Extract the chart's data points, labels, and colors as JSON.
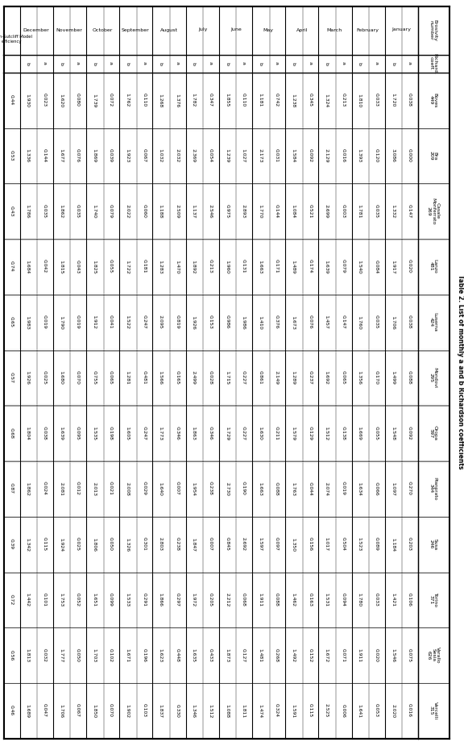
{
  "title": "Table 2. List of monthly a and b Richardson coefficients",
  "stations": [
    "Boves",
    "Bra",
    "Casale\nMonferrato",
    "Lanzo",
    "Luserna",
    "Mondovi",
    "Oropa",
    "Pianprato",
    "Susa",
    "Torino",
    "Varallo\nSesia",
    "Vercelli"
  ],
  "station_numbers": [
    "449",
    "209",
    "269",
    "481",
    "424",
    "295",
    "597",
    "344",
    "246",
    "371",
    "626",
    "315"
  ],
  "months": [
    "January",
    "February",
    "March",
    "April",
    "May",
    "June",
    "July",
    "August",
    "September",
    "October",
    "November",
    "December"
  ],
  "nash_label": "Nash-Sutcliff Model\nefficiency",
  "coeff_col_label": "Richard.\ncoeff.",
  "erosivity_label": "Erosivity\nnumber",
  "data": {
    "January": {
      "a": [
        0.038,
        0.0,
        0.147,
        0.02,
        0.038,
        0.088,
        0.092,
        0.27,
        0.203,
        0.106,
        0.075,
        0.016
      ],
      "b": [
        1.72,
        3.086,
        1.332,
        1.917,
        1.706,
        1.499,
        1.548,
        1.097,
        1.184,
        1.421,
        1.546,
        2.02
      ]
    },
    "February": {
      "a": [
        0.033,
        0.12,
        0.035,
        0.084,
        0.035,
        0.17,
        0.055,
        0.066,
        0.089,
        0.033,
        0.02,
        0.053
      ],
      "b": [
        1.81,
        1.393,
        1.781,
        1.54,
        1.76,
        1.356,
        1.669,
        1.634,
        1.523,
        1.78,
        1.911,
        1.641
      ]
    },
    "March": {
      "a": [
        0.213,
        0.016,
        0.003,
        0.079,
        0.147,
        0.065,
        0.138,
        0.019,
        0.504,
        0.094,
        0.071,
        0.006
      ],
      "b": [
        1.324,
        2.129,
        2.699,
        1.639,
        1.457,
        1.692,
        1.512,
        2.074,
        1.017,
        1.531,
        1.672,
        2.525
      ]
    },
    "April": {
      "a": [
        0.345,
        0.092,
        0.521,
        0.174,
        0.076,
        0.237,
        0.129,
        0.044,
        0.156,
        0.163,
        0.152,
        0.115
      ],
      "b": [
        1.238,
        1.584,
        1.084,
        1.489,
        1.673,
        1.289,
        1.579,
        1.763,
        1.35,
        1.462,
        1.492,
        1.591
      ]
    },
    "May": {
      "a": [
        0.742,
        0.031,
        0.144,
        0.171,
        0.376,
        2.149,
        0.211,
        0.088,
        0.097,
        0.088,
        0.268,
        0.324
      ],
      "b": [
        1.181,
        2.173,
        1.77,
        1.663,
        1.41,
        0.861,
        1.63,
        1.663,
        1.597,
        1.911,
        1.481,
        1.474
      ]
    },
    "June": {
      "a": [
        0.11,
        1.027,
        2.893,
        0.131,
        1.986,
        0.227,
        0.227,
        0.19,
        2.692,
        0.068,
        0.127,
        1.811
      ],
      "b": [
        1.855,
        1.239,
        0.975,
        1.96,
        0.986,
        1.715,
        1.729,
        2.73,
        0.845,
        2.212,
        1.873,
        1.088
      ]
    },
    "July": {
      "a": [
        0.347,
        0.054,
        2.546,
        0.213,
        0.153,
        0.028,
        0.346,
        0.238,
        0.007,
        0.205,
        0.433,
        1.512
      ],
      "b": [
        1.782,
        2.369,
        1.137,
        1.892,
        1.926,
        2.499,
        1.863,
        1.954,
        1.847,
        1.972,
        1.635,
        1.346
      ]
    },
    "August": {
      "a": [
        1.376,
        2.032,
        2.509,
        1.47,
        0.819,
        0.165,
        0.346,
        0.007,
        0.238,
        0.297,
        0.448,
        0.33
      ],
      "b": [
        1.268,
        1.032,
        1.188,
        1.283,
        2.095,
        1.566,
        1.773,
        1.64,
        2.803,
        1.866,
        1.623,
        1.837
      ]
    },
    "September": {
      "a": [
        0.11,
        0.067,
        0.06,
        0.181,
        0.247,
        0.481,
        0.247,
        0.029,
        0.301,
        0.291,
        0.196,
        0.103
      ],
      "b": [
        1.762,
        1.923,
        2.022,
        1.722,
        1.522,
        1.281,
        1.605,
        2.008,
        1.326,
        1.533,
        1.671,
        1.902
      ]
    },
    "October": {
      "a": [
        0.072,
        0.039,
        0.079,
        0.055,
        0.041,
        0.065,
        0.198,
        0.021,
        0.05,
        0.099,
        0.102,
        0.07
      ],
      "b": [
        1.739,
        1.869,
        1.74,
        1.825,
        1.912,
        0.755,
        1.535,
        2.013,
        1.806,
        1.651,
        1.703,
        1.85
      ]
    },
    "November": {
      "a": [
        0.08,
        0.076,
        0.035,
        0.043,
        0.019,
        0.07,
        0.095,
        0.012,
        0.025,
        0.052,
        0.05,
        0.067
      ],
      "b": [
        1.62,
        1.677,
        1.862,
        1.815,
        1.79,
        1.68,
        1.639,
        2.081,
        1.924,
        1.753,
        1.777,
        1.706
      ]
    },
    "December": {
      "a": [
        0.023,
        0.144,
        0.035,
        0.042,
        0.019,
        0.025,
        0.038,
        0.024,
        0.115,
        0.101,
        0.032,
        0.047
      ],
      "b": [
        1.93,
        1.336,
        1.786,
        1.684,
        1.983,
        1.926,
        1.804,
        1.862,
        1.342,
        1.442,
        1.813,
        1.689
      ]
    }
  },
  "nash": [
    0.44,
    0.53,
    0.43,
    0.74,
    0.65,
    0.57,
    0.68,
    0.87,
    0.39,
    0.72,
    0.56,
    0.46
  ]
}
